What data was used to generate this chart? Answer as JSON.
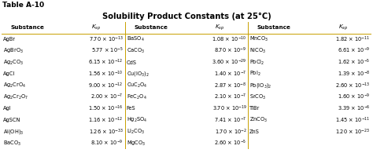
{
  "table_label": "Table A-10",
  "title": "Solubility Product Constants (at 25°C)",
  "title_bg": "#FFFF88",
  "border_color": "#C8A000",
  "col1_substances": [
    "AgBr",
    "AgBrO$_3$",
    "Ag$_2$CO$_3$",
    "AgCl",
    "Ag$_2$CrO$_4$",
    "Ag$_2$Cr$_2$O$_7$",
    "AgI",
    "AgSCN",
    "Al(OH)$_3$",
    "BaCO$_3$"
  ],
  "col1_ksp": [
    "7.70 × 10$^{-13}$",
    "5.77 × 10$^{-5}$",
    "6.15 × 10$^{-12}$",
    "1.56 × 10$^{-10}$",
    "9.00 × 10$^{-12}$",
    "2.00 × 10$^{-7}$",
    "1.50 × 10$^{-16}$",
    "1.16 × 10$^{-12}$",
    "1.26 × 10$^{-33}$",
    "8.10 × 10$^{-9}$"
  ],
  "col2_substances": [
    "BaSO$_4$",
    "CaCO$_3$",
    "CdS",
    "Cu(IO$_3$)$_2$",
    "CuC$_2$O$_4$",
    "FeC$_2$O$_4$",
    "FeS",
    "Hg$_2$SO$_4$",
    "Li$_2$CO$_3$",
    "MgCO$_3$"
  ],
  "col2_ksp": [
    "1.08 × 10$^{-10}$",
    "8.70 × 10$^{-9}$",
    "3.60 × 10$^{-29}$",
    "1.40 × 10$^{-7}$",
    "2.87 × 10$^{-8}$",
    "2.10 × 10$^{-7}$",
    "3.70 × 10$^{-19}$",
    "7.41 × 10$^{-7}$",
    "1.70 × 10$^{-2}$",
    "2.60 × 10$^{-5}$"
  ],
  "col3_substances": [
    "MnCO$_3$",
    "NiCO$_3$",
    "PbCl$_2$",
    "PbI$_2$",
    "Pb(IO$_3$)$_2$",
    "SrCO$_3$",
    "TlBr",
    "ZnCO$_3$",
    "ZnS",
    ""
  ],
  "col3_ksp": [
    "1.82 × 10$^{-11}$",
    "6.61 × 10$^{-9}$",
    "1.62 × 10$^{-5}$",
    "1.39 × 10$^{-8}$",
    "2.60 × 10$^{-13}$",
    "1.60 × 10$^{-9}$",
    "3.39 × 10$^{-6}$",
    "1.45 × 10$^{-11}$",
    "1.20 × 10$^{-23}$",
    ""
  ],
  "font_size": 4.8,
  "header_font_size": 5.2,
  "title_font_size": 7.2,
  "label_font_size": 6.5
}
